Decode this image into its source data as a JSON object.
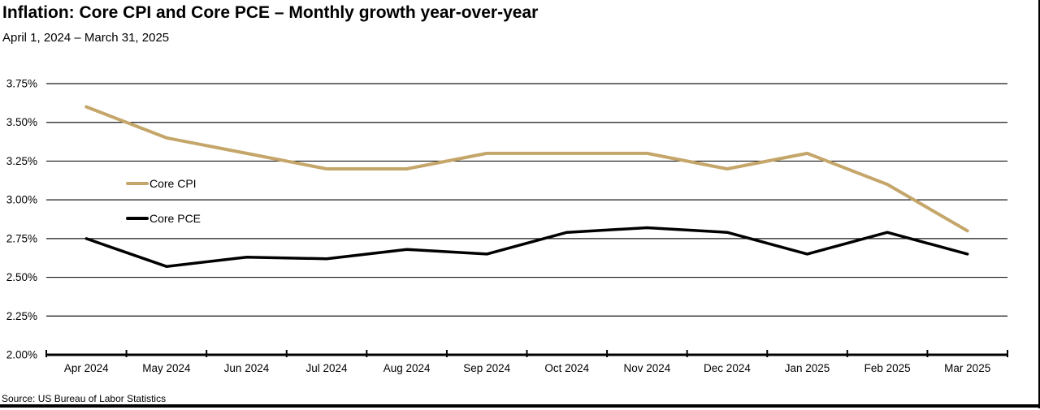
{
  "header": {
    "title": "Inflation: Core CPI and Core PCE – Monthly growth year-over-year",
    "subtitle": "April 1, 2024 – March 31, 2025"
  },
  "footer": {
    "source": "Source: US Bureau of Labor Statistics"
  },
  "colors": {
    "core_cpi": "#C5A66A",
    "core_pce": "#000000",
    "gridline": "#1a1a1a",
    "axis": "#000000"
  },
  "chart_data": {
    "type": "line",
    "title": "Inflation: Core CPI and Core PCE – Monthly growth year-over-year",
    "subtitle": "April 1, 2024 – March 31, 2025",
    "categories": [
      "Apr 2024",
      "May 2024",
      "Jun 2024",
      "Jul 2024",
      "Aug 2024",
      "Sep 2024",
      "Oct 2024",
      "Nov 2024",
      "Dec 2024",
      "Jan 2025",
      "Feb 2025",
      "Mar 2025"
    ],
    "series": [
      {
        "id": "core-cpi",
        "name": "Core CPI",
        "color": "#C5A66A",
        "values": [
          3.6,
          3.4,
          3.3,
          3.2,
          3.2,
          3.3,
          3.3,
          3.3,
          3.2,
          3.3,
          3.1,
          2.8
        ]
      },
      {
        "id": "core-pce",
        "name": "Core PCE",
        "color": "#000000",
        "values": [
          2.75,
          2.57,
          2.63,
          2.62,
          2.68,
          2.65,
          2.79,
          2.82,
          2.79,
          2.65,
          2.79,
          2.65
        ]
      }
    ],
    "xlabel": "",
    "ylabel": "",
    "ylim": [
      2.0,
      3.75
    ],
    "ytick_values": [
      3.75,
      3.5,
      3.25,
      3.0,
      2.75,
      2.5,
      2.25,
      2.0
    ],
    "ytick_labels": [
      "3.75%",
      "3.50%",
      "3.25%",
      "3.00%",
      "2.75%",
      "2.50%",
      "2.25%",
      "2.00%"
    ],
    "grid": true,
    "legend_position": "inside-left"
  }
}
